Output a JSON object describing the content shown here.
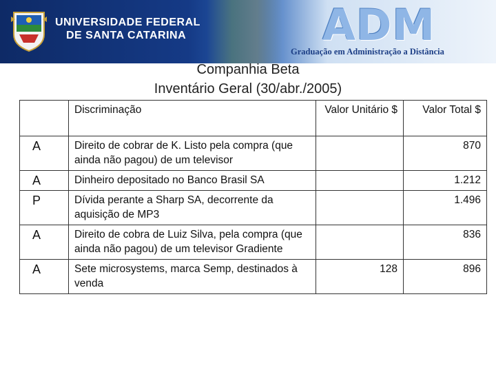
{
  "header": {
    "university_line1": "UNIVERSIDADE FEDERAL",
    "university_line2": "DE SANTA CATARINA",
    "logo_text": "ADM",
    "program": "Graduação em Administração a Distância"
  },
  "title": {
    "company": "Companhia Beta",
    "subtitle": "Inventário Geral (30/abr./2005)"
  },
  "table": {
    "headers": {
      "code": "",
      "description": "Discriminação",
      "unit_value": "Valor Unitário $",
      "total_value": "Valor Total $"
    },
    "rows": [
      {
        "code": "A",
        "description": "Direito de cobrar de K. Listo pela compra (que ainda não pagou) de um televisor",
        "unit": "",
        "total": "870"
      },
      {
        "code": "A",
        "description": "Dinheiro depositado no Banco Brasil SA",
        "unit": "",
        "total": "1.212"
      },
      {
        "code": "P",
        "description": "Dívida perante a Sharp SA, decorrente da aquisição de MP3",
        "unit": "",
        "total": "1.496"
      },
      {
        "code": "A",
        "description": "Direito de cobra de Luiz Silva, pela compra (que ainda não pagou) de um televisor Gradiente",
        "unit": "",
        "total": "836"
      },
      {
        "code": "A",
        "description": "Sete microsystems, marca Semp, destinados à venda",
        "unit": "128",
        "total": "896"
      }
    ]
  },
  "colors": {
    "banner_dark": "#0e2a66",
    "banner_light": "#eef4fb",
    "program_text": "#1d3f86"
  }
}
